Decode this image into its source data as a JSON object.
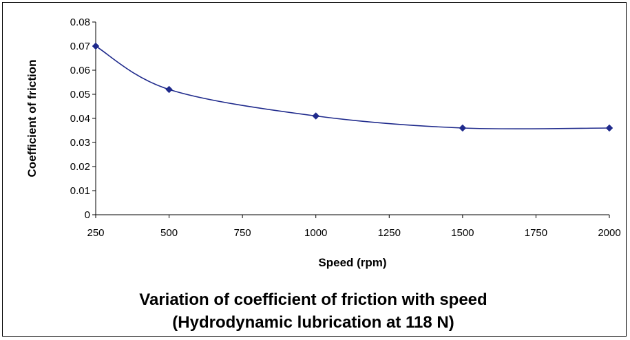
{
  "chart_data": {
    "type": "line",
    "title": "Variation of coefficient of friction with speed",
    "subtitle": "(Hydrodynamic lubrication at 118 N)",
    "xlabel": "Speed (rpm)",
    "ylabel": "Coefficient of friction",
    "xlim": [
      250,
      2000
    ],
    "ylim": [
      0,
      0.08
    ],
    "x_ticks": [
      "250",
      "500",
      "750",
      "1000",
      "1250",
      "1500",
      "1750",
      "2000"
    ],
    "y_ticks": [
      "0",
      "0.01",
      "0.02",
      "0.03",
      "0.04",
      "0.05",
      "0.06",
      "0.07",
      "0.08"
    ],
    "grid": false,
    "legend": "none",
    "series": [
      {
        "color": "#1F2A8C",
        "marker": "diamond",
        "smoothed": true,
        "x": [
          250,
          500,
          1000,
          1500,
          2000
        ],
        "y": [
          0.07,
          0.052,
          0.041,
          0.036,
          0.036
        ]
      }
    ]
  }
}
